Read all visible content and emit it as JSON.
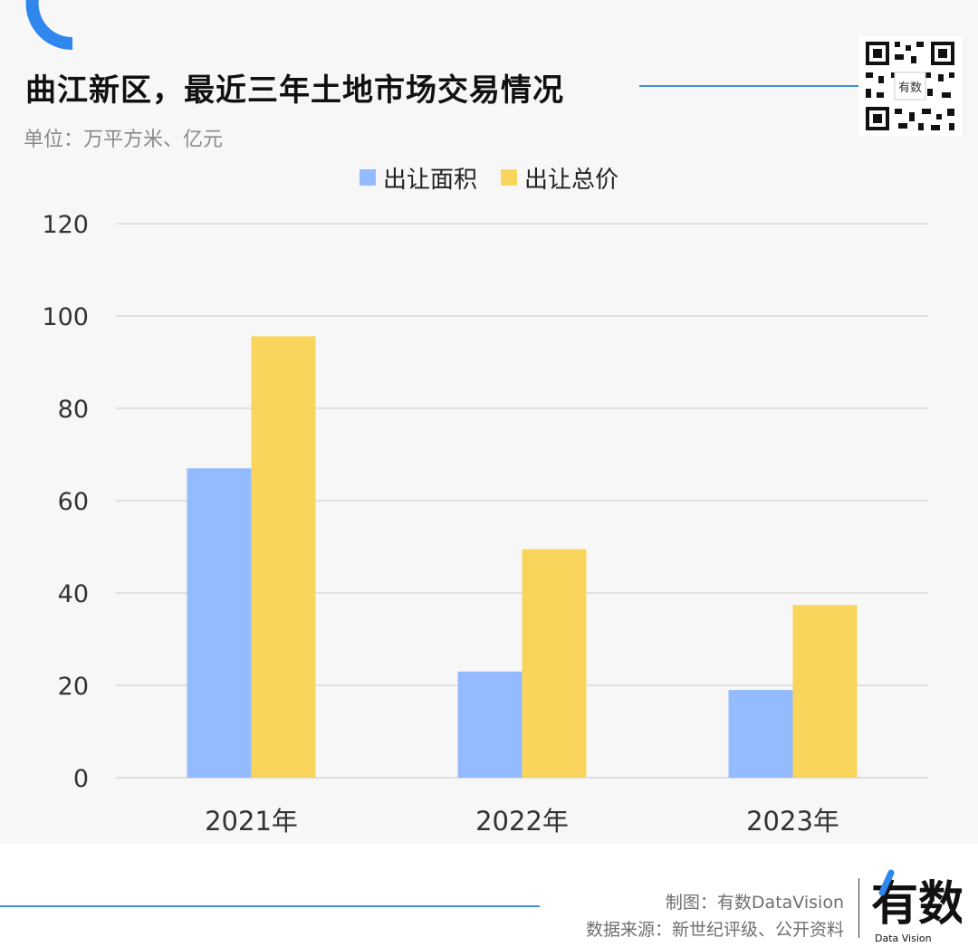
{
  "header": {
    "title": "曲江新区，最近三年土地市场交易情况",
    "unit": "单位：万平方米、亿元"
  },
  "brand": {
    "qr_icon": "qr-code-icon",
    "qr_text": "有数",
    "logo_text": "有数",
    "logo_sub": "Data Vision"
  },
  "footer": {
    "credit": "制图：有数DataVision",
    "source": "数据来源：新世纪评级、公开资料"
  },
  "colors": {
    "accent": "#3f8fe0",
    "series_area": "#94bbff",
    "series_price": "#f9d65b",
    "grid": "#d9d9d9"
  },
  "chart_data": {
    "type": "bar",
    "categories": [
      "2021年",
      "2022年",
      "2023年"
    ],
    "series": [
      {
        "name": "出让面积",
        "values": [
          67,
          23,
          19
        ]
      },
      {
        "name": "出让总价",
        "values": [
          95.6,
          49.5,
          37.4
        ]
      }
    ],
    "yticks": [
      "0",
      "20",
      "40",
      "60",
      "80",
      "100",
      "120"
    ],
    "ylim": [
      0,
      120
    ],
    "grid": true,
    "legend_position": "top-center"
  }
}
